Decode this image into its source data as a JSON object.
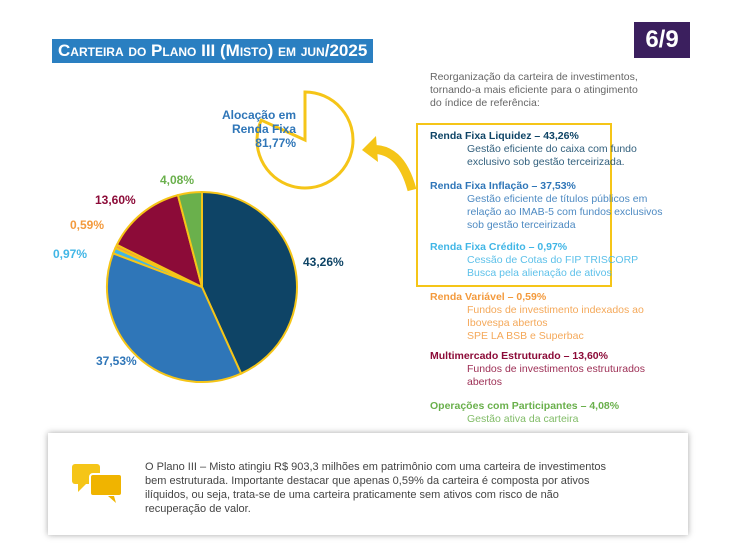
{
  "page_number": "6/9",
  "title": "Carteira do Plano III (Misto) em jun/2025",
  "intro": [
    "Reorganização da carteira de investimentos,",
    "tornando-a mais eficiente para o atingimento",
    "do índice de referência:"
  ],
  "details": [
    {
      "heading": "Renda Fixa Liquidez – 43,26%",
      "lines": [
        "Gestão eficiente do caixa com fundo",
        "exclusivo sob gestão terceirizada."
      ]
    },
    {
      "heading": "Renda Fixa Inflação – 37,53%",
      "lines": [
        "Gestão eficiente de títulos públicos em",
        "relação ao IMAB-5 com fundos exclusivos",
        "sob gestão terceirizada"
      ]
    },
    {
      "heading": "Renda Fixa Crédito – 0,97%",
      "lines": [
        "Cessão de Cotas do FIP TRISCORP",
        "Busca pela alienação de ativos"
      ]
    },
    {
      "heading": "Renda Variável – 0,59%",
      "lines": [
        "Fundos de investimento indexados ao",
        "Ibovespa abertos",
        "SPE LA BSB e Superbac"
      ]
    },
    {
      "heading": "Multimercado Estruturado – 13,60%",
      "lines": [
        "Fundos de investimentos estruturados",
        "abertos"
      ]
    },
    {
      "heading": "Operações com Participantes – 4,08%",
      "lines": [
        "Gestão ativa da carteira"
      ]
    }
  ],
  "summary": [
    "O Plano III – Misto atingiu R$ 903,3 milhões em patrimônio com uma carteira de investimentos",
    "bem estruturada. Importante destacar que apenas 0,59% da carteira é composta por ativos",
    "ilíquidos, ou seja, trata-se de uma carteira praticamente sem ativos com risco de não",
    "recuperação de valor."
  ],
  "chart_data": [
    {
      "type": "pie",
      "values": [
        43.26,
        37.53,
        0.97,
        0.59,
        13.6,
        4.08
      ],
      "value_labels": [
        "43,26%",
        "37,53%",
        "0,97%",
        "0,59%",
        "13,60%",
        "4,08%"
      ],
      "colors": [
        "#0e4466",
        "#2f76b8",
        "#41b6e6",
        "#f39a3d",
        "#8c0b38",
        "#6ab04c"
      ]
    },
    {
      "type": "pie",
      "title_lines": [
        "Alocação em",
        "Renda Fixa"
      ],
      "values": [
        81.77
      ],
      "value_labels": [
        "81,77%"
      ],
      "colors": [
        "#f5c518"
      ]
    }
  ]
}
